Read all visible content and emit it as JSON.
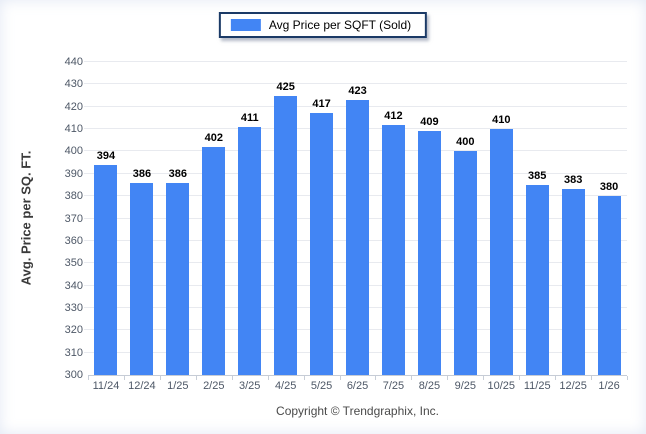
{
  "page": {
    "background_color": "#ffffff"
  },
  "legend": {
    "label": "Avg Price per SQFT (Sold)",
    "swatch_color": "#4285f4",
    "border_color": "#1b3a66",
    "position": "top-center"
  },
  "footer": {
    "text": "Copyright © Trendgraphix, Inc."
  },
  "chart_data": {
    "type": "bar",
    "title": "",
    "xlabel": "",
    "ylabel": "Avg. Price per SQ. FT.",
    "categories": [
      "11/24",
      "12/24",
      "1/25",
      "2/25",
      "3/25",
      "4/25",
      "5/25",
      "6/25",
      "7/25",
      "8/25",
      "9/25",
      "10/25",
      "11/25",
      "12/25",
      "1/26"
    ],
    "values": [
      394,
      386,
      386,
      402,
      411,
      425,
      417,
      423,
      412,
      409,
      400,
      410,
      385,
      383,
      380
    ],
    "series_name": "Avg Price per SQFT (Sold)",
    "ylim": [
      300,
      440
    ],
    "ytick_step": 10,
    "ytick_labels": [
      "300",
      "310",
      "320",
      "330",
      "340",
      "350",
      "360",
      "370",
      "380",
      "390",
      "400",
      "410",
      "420",
      "430",
      "440"
    ],
    "grid": true,
    "value_labels": true,
    "bar_color": "#4285f4",
    "legend_position": "top-center"
  }
}
